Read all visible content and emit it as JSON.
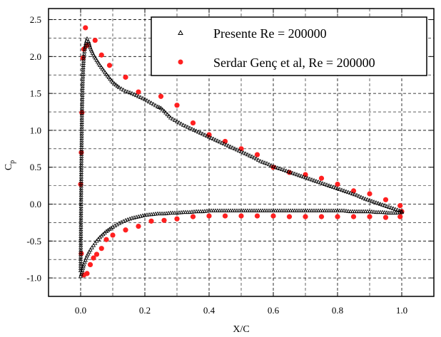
{
  "chart_data": {
    "type": "scatter",
    "xlabel": "X/C",
    "ylabel": "Cp",
    "ylabel_main": "C",
    "ylabel_sub": "p",
    "xlim": [
      -0.1,
      1.1
    ],
    "ylim": [
      -1.25,
      2.65
    ],
    "x_ticks": [
      0.0,
      0.2,
      0.4,
      0.6,
      0.8,
      1.0
    ],
    "x_tick_labels": [
      "0.0",
      "0.2",
      "0.4",
      "0.6",
      "0.8",
      "1.0"
    ],
    "y_ticks": [
      -1.0,
      -0.5,
      0.0,
      0.5,
      1.0,
      1.5,
      2.0,
      2.5
    ],
    "y_tick_labels": [
      "-1.0",
      "-0.5",
      "0.0",
      "0.5",
      "1.0",
      "1.5",
      "2.0",
      "2.5"
    ],
    "grid": true,
    "legend_position": "top-right",
    "series": [
      {
        "name": "Presente  Re = 200000",
        "marker": "open-triangle",
        "color": "#000000",
        "upper": {
          "x": [
            0.0,
            0.002,
            0.004,
            0.006,
            0.008,
            0.01,
            0.013,
            0.016,
            0.02,
            0.025,
            0.03,
            0.04,
            0.05,
            0.06,
            0.08,
            0.1,
            0.12,
            0.14,
            0.16,
            0.18,
            0.2,
            0.22,
            0.24,
            0.25,
            0.26,
            0.28,
            0.3,
            0.32,
            0.34,
            0.36,
            0.38,
            0.4,
            0.42,
            0.44,
            0.46,
            0.48,
            0.5,
            0.52,
            0.54,
            0.56,
            0.58,
            0.6,
            0.62,
            0.64,
            0.66,
            0.68,
            0.7,
            0.72,
            0.74,
            0.76,
            0.78,
            0.8,
            0.82,
            0.84,
            0.86,
            0.88,
            0.9,
            0.92,
            0.94,
            0.96,
            0.98,
            1.0
          ],
          "y": [
            -0.9,
            0.4,
            1.2,
            1.6,
            1.85,
            2.0,
            2.1,
            2.18,
            2.24,
            2.2,
            2.12,
            2.02,
            1.95,
            1.88,
            1.76,
            1.65,
            1.58,
            1.53,
            1.5,
            1.46,
            1.42,
            1.37,
            1.32,
            1.3,
            1.26,
            1.17,
            1.12,
            1.07,
            1.03,
            0.99,
            0.95,
            0.91,
            0.87,
            0.83,
            0.79,
            0.75,
            0.71,
            0.67,
            0.63,
            0.58,
            0.55,
            0.51,
            0.48,
            0.45,
            0.42,
            0.39,
            0.36,
            0.33,
            0.3,
            0.27,
            0.24,
            0.21,
            0.18,
            0.15,
            0.12,
            0.08,
            0.05,
            0.02,
            -0.01,
            -0.04,
            -0.07,
            -0.1
          ]
        },
        "lower": {
          "x": [
            0.0,
            0.005,
            0.01,
            0.02,
            0.03,
            0.04,
            0.05,
            0.06,
            0.07,
            0.08,
            0.09,
            0.1,
            0.12,
            0.14,
            0.16,
            0.18,
            0.2,
            0.22,
            0.24,
            0.26,
            0.28,
            0.3,
            0.32,
            0.34,
            0.36,
            0.38,
            0.4,
            0.42,
            0.44,
            0.46,
            0.48,
            0.5,
            0.52,
            0.54,
            0.56,
            0.58,
            0.6,
            0.62,
            0.64,
            0.66,
            0.68,
            0.7,
            0.72,
            0.74,
            0.76,
            0.78,
            0.8,
            0.82,
            0.84,
            0.86,
            0.88,
            0.9,
            0.92,
            0.94,
            0.96,
            0.98,
            1.0
          ],
          "y": [
            -0.98,
            -0.9,
            -0.82,
            -0.7,
            -0.62,
            -0.56,
            -0.5,
            -0.45,
            -0.41,
            -0.37,
            -0.34,
            -0.31,
            -0.26,
            -0.22,
            -0.19,
            -0.17,
            -0.15,
            -0.14,
            -0.13,
            -0.13,
            -0.12,
            -0.12,
            -0.11,
            -0.11,
            -0.1,
            -0.1,
            -0.09,
            -0.09,
            -0.09,
            -0.09,
            -0.09,
            -0.09,
            -0.09,
            -0.09,
            -0.09,
            -0.09,
            -0.09,
            -0.09,
            -0.09,
            -0.09,
            -0.09,
            -0.09,
            -0.09,
            -0.09,
            -0.09,
            -0.09,
            -0.09,
            -0.09,
            -0.1,
            -0.1,
            -0.1,
            -0.1,
            -0.11,
            -0.11,
            -0.12,
            -0.12,
            -0.11
          ]
        }
      },
      {
        "name": "Serdar Genç et al, Re = 200000",
        "marker": "filled-circle",
        "color": "#ff2020",
        "x": [
          0.0,
          0.002,
          0.004,
          0.007,
          0.01,
          0.015,
          0.02,
          0.045,
          0.065,
          0.09,
          0.14,
          0.18,
          0.25,
          0.3,
          0.35,
          0.4,
          0.45,
          0.5,
          0.55,
          0.6,
          0.65,
          0.7,
          0.75,
          0.8,
          0.85,
          0.9,
          0.95,
          0.995,
          0.002,
          0.01,
          0.02,
          0.03,
          0.04,
          0.05,
          0.065,
          0.08,
          0.1,
          0.14,
          0.18,
          0.22,
          0.26,
          0.3,
          0.35,
          0.4,
          0.45,
          0.5,
          0.55,
          0.6,
          0.65,
          0.7,
          0.75,
          0.8,
          0.85,
          0.9,
          0.95,
          0.995,
          1.0
        ],
        "y": [
          0.27,
          0.7,
          1.24,
          1.98,
          2.1,
          2.39,
          2.15,
          2.22,
          2.02,
          1.88,
          1.72,
          1.52,
          1.46,
          1.34,
          1.1,
          0.94,
          0.85,
          0.75,
          0.67,
          0.5,
          0.43,
          0.4,
          0.35,
          0.27,
          0.18,
          0.14,
          0.06,
          -0.02,
          -0.67,
          -0.96,
          -0.94,
          -0.82,
          -0.73,
          -0.68,
          -0.6,
          -0.48,
          -0.42,
          -0.35,
          -0.3,
          -0.23,
          -0.22,
          -0.2,
          -0.17,
          -0.16,
          -0.16,
          -0.16,
          -0.16,
          -0.16,
          -0.17,
          -0.17,
          -0.17,
          -0.17,
          -0.17,
          -0.17,
          -0.18,
          -0.17,
          -0.1
        ]
      }
    ]
  }
}
